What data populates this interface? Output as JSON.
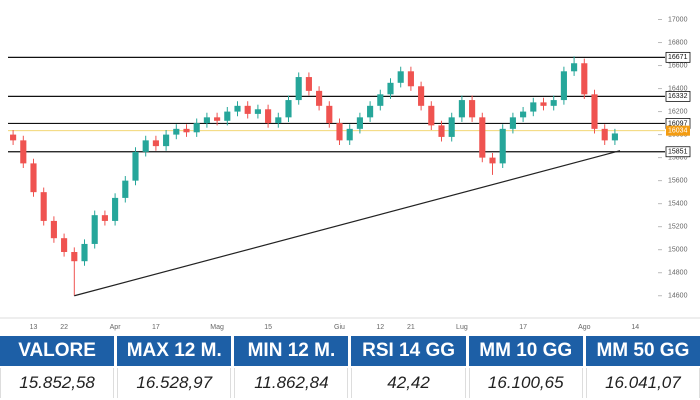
{
  "chart_data": {
    "type": "candlestick",
    "x_labels": [
      {
        "at": 2,
        "label": "13"
      },
      {
        "at": 5,
        "label": "22"
      },
      {
        "at": 10,
        "label": "Apr"
      },
      {
        "at": 14,
        "label": "17"
      },
      {
        "at": 20,
        "label": "Mag"
      },
      {
        "at": 25,
        "label": "15"
      },
      {
        "at": 32,
        "label": "Giu"
      },
      {
        "at": 36,
        "label": "12"
      },
      {
        "at": 39,
        "label": "21"
      },
      {
        "at": 44,
        "label": "Lug"
      },
      {
        "at": 50,
        "label": "17"
      },
      {
        "at": 56,
        "label": "Ago"
      },
      {
        "at": 61,
        "label": "14"
      }
    ],
    "open": [
      16000,
      15950,
      15750,
      15500,
      15250,
      15100,
      14980,
      14900,
      15050,
      15300,
      15250,
      15450,
      15600,
      15850,
      15950,
      15900,
      16000,
      16050,
      16020,
      16100,
      16150,
      16120,
      16200,
      16250,
      16180,
      16220,
      16100,
      16150,
      16300,
      16500,
      16380,
      16250,
      16100,
      15950,
      16050,
      16150,
      16250,
      16350,
      16450,
      16550,
      16420,
      16250,
      16080,
      15980,
      16150,
      16300,
      16150,
      15800,
      15750,
      16050,
      16150,
      16200,
      16280,
      16250,
      16300,
      16550,
      16620,
      16350,
      16050,
      15950
    ],
    "high": [
      16040,
      15990,
      15790,
      15540,
      15290,
      15140,
      15020,
      15090,
      15340,
      15340,
      15490,
      15640,
      15890,
      15990,
      15990,
      16040,
      16090,
      16090,
      16140,
      16190,
      16190,
      16240,
      16290,
      16290,
      16260,
      16260,
      16190,
      16340,
      16540,
      16540,
      16420,
      16290,
      16140,
      16090,
      16190,
      16290,
      16390,
      16490,
      16590,
      16590,
      16460,
      16290,
      16120,
      16190,
      16340,
      16340,
      16190,
      15840,
      16090,
      16190,
      16240,
      16320,
      16320,
      16340,
      16590,
      16680,
      16660,
      16390,
      16090,
      16050
    ],
    "low": [
      15910,
      15710,
      15460,
      15210,
      15060,
      14940,
      14600,
      14860,
      15010,
      15210,
      15210,
      15410,
      15560,
      15810,
      15860,
      15860,
      15960,
      15980,
      15980,
      16060,
      16080,
      16080,
      16160,
      16140,
      16140,
      16060,
      16060,
      16110,
      16260,
      16340,
      16210,
      16060,
      15910,
      15910,
      16010,
      16110,
      16210,
      16310,
      16410,
      16380,
      16210,
      16040,
      15940,
      15940,
      16110,
      16110,
      15760,
      15650,
      15710,
      16010,
      16110,
      16160,
      16210,
      16210,
      16260,
      16510,
      16310,
      16010,
      15910,
      15910
    ],
    "close": [
      15950,
      15750,
      15500,
      15250,
      15100,
      14980,
      14900,
      15050,
      15300,
      15250,
      15450,
      15600,
      15850,
      15950,
      15900,
      16000,
      16050,
      16020,
      16100,
      16150,
      16120,
      16200,
      16250,
      16180,
      16220,
      16100,
      16150,
      16300,
      16500,
      16380,
      16250,
      16100,
      15950,
      16050,
      16150,
      16250,
      16350,
      16450,
      16550,
      16420,
      16250,
      16080,
      15980,
      16150,
      16300,
      16150,
      15800,
      15750,
      16050,
      16150,
      16200,
      16280,
      16250,
      16300,
      16550,
      16620,
      16350,
      16050,
      15950,
      16010
    ],
    "up_color": "#26a69a",
    "down_color": "#ef5350",
    "ylim": [
      14450,
      17100
    ],
    "yticks": [
      14600,
      14800,
      15000,
      15200,
      15400,
      15600,
      15800,
      16000,
      16200,
      16400,
      16600,
      16800,
      17000
    ],
    "levels": [
      16671,
      16332,
      16097,
      15851
    ],
    "last_price": 16034,
    "trendline": {
      "from": 6,
      "to": 59.5,
      "start": 14600,
      "end": 15860
    }
  },
  "table": {
    "headers": [
      "VALORE",
      "MAX 12 M.",
      "MIN 12 M.",
      "RSI 14 GG",
      "MM 10 GG",
      "MM 50 GG"
    ],
    "values": [
      "15.852,58",
      "16.528,97",
      "11.862,84",
      "42,42",
      "16.100,65",
      "16.041,07"
    ]
  }
}
